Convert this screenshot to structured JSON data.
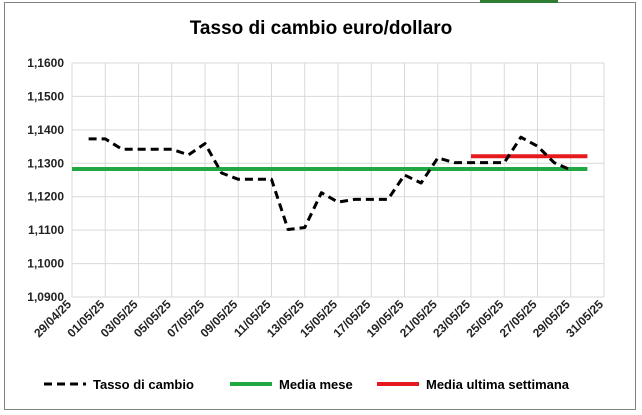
{
  "chart_data": {
    "type": "line",
    "title": "Tasso di cambio euro/dollaro",
    "xlabel": "",
    "ylabel": "",
    "x_start": "29/04/25",
    "x_end": "31/05/25",
    "x_tick_labels": [
      "29/04/25",
      "01/05/25",
      "03/05/25",
      "05/05/25",
      "07/05/25",
      "09/05/25",
      "11/05/25",
      "13/05/25",
      "15/05/25",
      "17/05/25",
      "19/05/25",
      "21/05/25",
      "23/05/25",
      "25/05/25",
      "27/05/25",
      "29/05/25",
      "31/05/25"
    ],
    "y_tick_labels": [
      "1,0900",
      "1,1000",
      "1,1100",
      "1,1200",
      "1,1300",
      "1,1400",
      "1,1500",
      "1,1600"
    ],
    "ylim": [
      1.09,
      1.16
    ],
    "grid": true,
    "legend_position": "bottom",
    "series": [
      {
        "name": "Tasso di cambio",
        "color": "#000000",
        "style": "dashed",
        "x": [
          "30/04/25",
          "01/05/25",
          "02/05/25",
          "03/05/25",
          "04/05/25",
          "05/05/25",
          "06/05/25",
          "07/05/25",
          "08/05/25",
          "09/05/25",
          "10/05/25",
          "11/05/25",
          "12/05/25",
          "13/05/25",
          "14/05/25",
          "15/05/25",
          "16/05/25",
          "17/05/25",
          "18/05/25",
          "19/05/25",
          "20/05/25",
          "21/05/25",
          "22/05/25",
          "23/05/25",
          "24/05/25",
          "25/05/25",
          "26/05/25",
          "27/05/25",
          "28/05/25",
          "29/05/25"
        ],
        "values": [
          1.1373,
          1.1373,
          1.1342,
          1.1342,
          1.1342,
          1.1342,
          1.1325,
          1.1359,
          1.1271,
          1.1252,
          1.1252,
          1.1252,
          1.1102,
          1.1108,
          1.1212,
          1.1184,
          1.1192,
          1.1192,
          1.1192,
          1.1265,
          1.1241,
          1.1316,
          1.1302,
          1.1302,
          1.1302,
          1.1302,
          1.1378,
          1.1351,
          1.1302,
          1.128
        ]
      },
      {
        "name": "Media mese",
        "color": "#22a843",
        "style": "solid",
        "x": [
          "29/04/25",
          "30/05/25"
        ],
        "values": [
          1.1283,
          1.1283
        ]
      },
      {
        "name": "Media ultima settimana",
        "color": "#e41a1c",
        "style": "solid",
        "x": [
          "23/05/25",
          "30/05/25"
        ],
        "values": [
          1.1321,
          1.1321
        ]
      }
    ]
  }
}
